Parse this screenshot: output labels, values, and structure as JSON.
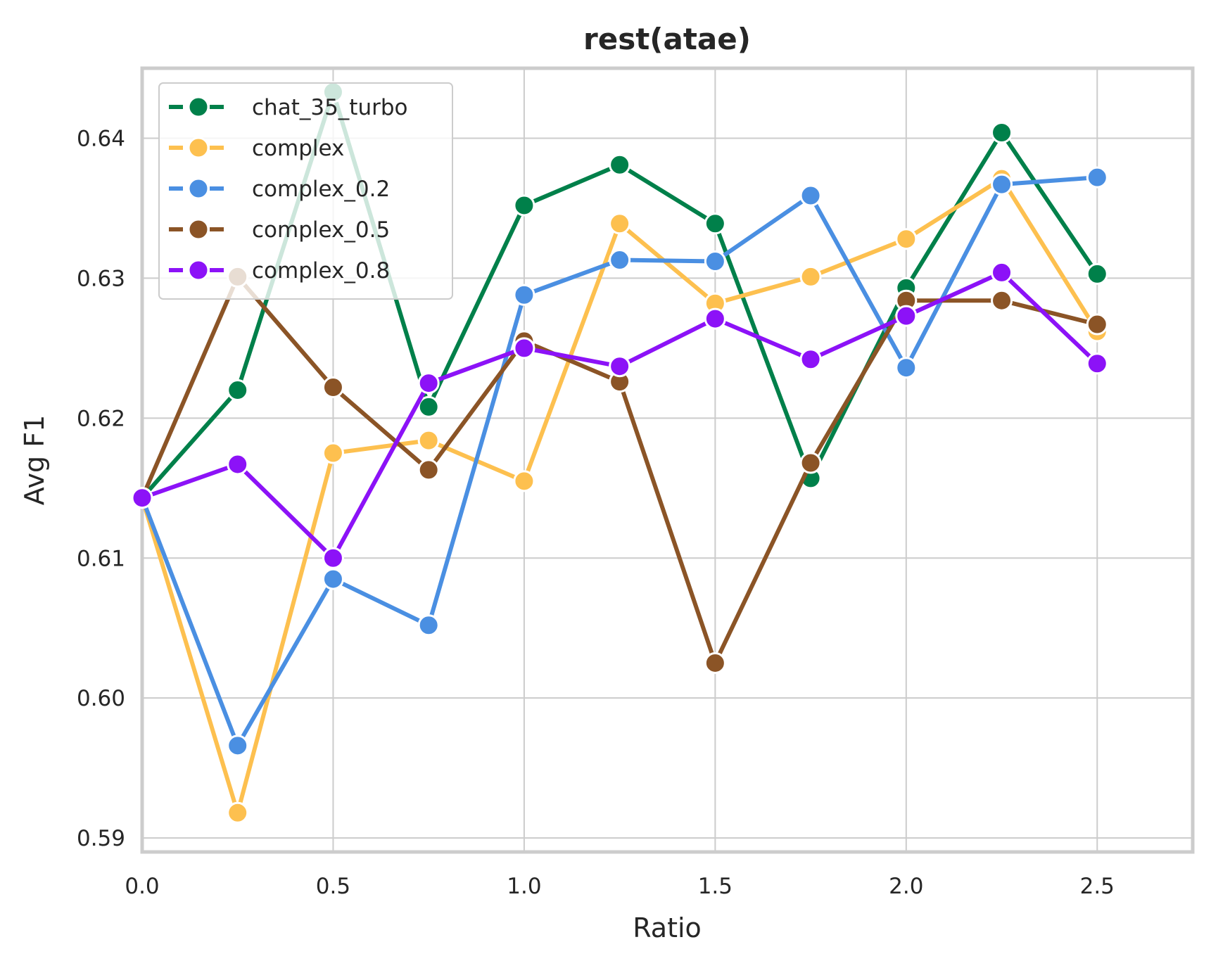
{
  "chart_data": {
    "type": "line",
    "title": "rest(atae)",
    "xlabel": "Ratio",
    "ylabel": "Avg F1",
    "xlim": [
      0.0,
      2.75
    ],
    "ylim": [
      0.589,
      0.645
    ],
    "xticks": [
      0.0,
      0.5,
      1.0,
      1.5,
      2.0,
      2.5
    ],
    "xtick_labels": [
      "0.0",
      "0.5",
      "1.0",
      "1.5",
      "2.0",
      "2.5"
    ],
    "yticks": [
      0.59,
      0.6,
      0.61,
      0.62,
      0.63,
      0.64
    ],
    "ytick_labels": [
      "0.59",
      "0.60",
      "0.61",
      "0.62",
      "0.63",
      "0.64"
    ],
    "grid": true,
    "legend_position": "top-left",
    "x": [
      0.0,
      0.25,
      0.5,
      0.75,
      1.0,
      1.25,
      1.5,
      1.75,
      2.0,
      2.25,
      2.5
    ],
    "series": [
      {
        "name": "chat_35_turbo",
        "color": "#00804a",
        "values": [
          0.6143,
          0.622,
          0.6433,
          0.6208,
          0.6352,
          0.6381,
          0.6339,
          0.6157,
          0.6293,
          0.6404,
          0.6303
        ]
      },
      {
        "name": "complex",
        "color": "#fdc04f",
        "values": [
          0.6143,
          0.5918,
          0.6175,
          0.6184,
          0.6155,
          0.6339,
          0.6282,
          0.6301,
          0.6328,
          0.6371,
          0.6262
        ]
      },
      {
        "name": "complex_0.2",
        "color": "#4a8fe2",
        "values": [
          0.6143,
          0.5966,
          0.6085,
          0.6052,
          0.6288,
          0.6313,
          0.6312,
          0.6359,
          0.6236,
          0.6367,
          0.6372
        ]
      },
      {
        "name": "complex_0.5",
        "color": "#8b5426",
        "values": [
          0.6143,
          0.6301,
          0.6222,
          0.6163,
          0.6255,
          0.6226,
          0.6025,
          0.6168,
          0.6284,
          0.6284,
          0.6267
        ]
      },
      {
        "name": "complex_0.8",
        "color": "#8c12f7",
        "values": [
          0.6143,
          0.6167,
          0.61,
          0.6225,
          0.625,
          0.6237,
          0.6271,
          0.6242,
          0.6273,
          0.6304,
          0.6239
        ]
      }
    ]
  }
}
